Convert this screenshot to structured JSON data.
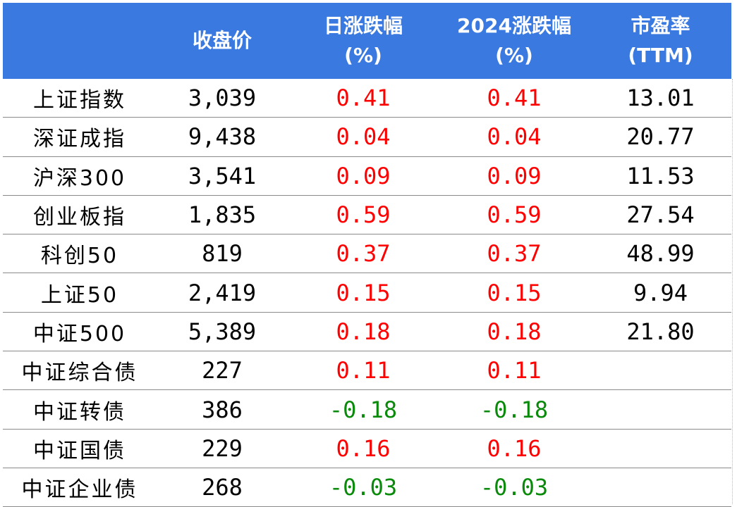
{
  "table": {
    "headers": [
      {
        "line1": "",
        "line2": ""
      },
      {
        "line1": "收盘价",
        "line2": ""
      },
      {
        "line1": "日涨跌幅",
        "line2": "(%)"
      },
      {
        "line1": "2024涨跌幅",
        "line2": "(%)"
      },
      {
        "line1": "市盈率",
        "line2": "(TTM)"
      }
    ],
    "rows": [
      {
        "name": "上证指数",
        "close": "3,039",
        "daily": "0.41",
        "ytd": "0.41",
        "pe": "13.01",
        "trend": "up"
      },
      {
        "name": "深证成指",
        "close": "9,438",
        "daily": "0.04",
        "ytd": "0.04",
        "pe": "20.77",
        "trend": "up"
      },
      {
        "name": "沪深300",
        "close": "3,541",
        "daily": "0.09",
        "ytd": "0.09",
        "pe": "11.53",
        "trend": "up"
      },
      {
        "name": "创业板指",
        "close": "1,835",
        "daily": "0.59",
        "ytd": "0.59",
        "pe": "27.54",
        "trend": "up"
      },
      {
        "name": "科创50",
        "close": "819",
        "daily": "0.37",
        "ytd": "0.37",
        "pe": "48.99",
        "trend": "up"
      },
      {
        "name": "上证50",
        "close": "2,419",
        "daily": "0.15",
        "ytd": "0.15",
        "pe": "9.94",
        "trend": "up"
      },
      {
        "name": "中证500",
        "close": "5,389",
        "daily": "0.18",
        "ytd": "0.18",
        "pe": "21.80",
        "trend": "up"
      },
      {
        "name": "中证综合债",
        "close": "227",
        "daily": "0.11",
        "ytd": "0.11",
        "pe": "",
        "trend": "up"
      },
      {
        "name": "中证转债",
        "close": "386",
        "daily": "-0.18",
        "ytd": "-0.18",
        "pe": "",
        "trend": "down"
      },
      {
        "name": "中证国债",
        "close": "229",
        "daily": "0.16",
        "ytd": "0.16",
        "pe": "",
        "trend": "up"
      },
      {
        "name": "中证企业债",
        "close": "268",
        "daily": "-0.03",
        "ytd": "-0.03",
        "pe": "",
        "trend": "down"
      }
    ]
  },
  "colors": {
    "header_bg": "#3979e0",
    "up": "#ff0000",
    "down": "#0a8a0a"
  }
}
